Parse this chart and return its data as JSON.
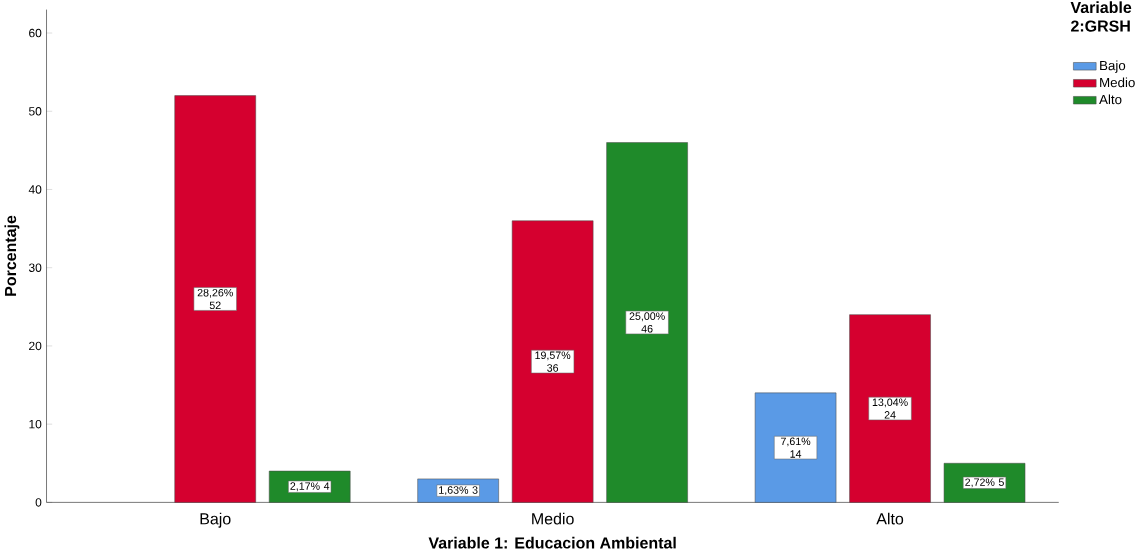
{
  "chart_data": {
    "type": "bar",
    "xlabel": "Variable 1: Educacion Ambiental",
    "ylabel": "Porcentaje",
    "legend_title": "Variable 2:GRSH",
    "legend": "top right",
    "categories": [
      "Bajo",
      "Medio",
      "Alto"
    ],
    "ylim": [
      0,
      63
    ],
    "yticks": [
      0,
      10,
      20,
      30,
      40,
      50,
      60
    ],
    "grid": false,
    "series": [
      {
        "name": "Bajo",
        "color": "#5a9ae6",
        "values": [
          null,
          3,
          14
        ],
        "value_labels": [
          null,
          "1,63% 3",
          "7,61% 14"
        ]
      },
      {
        "name": "Medio",
        "color": "#d5002f",
        "values": [
          52,
          36,
          24
        ],
        "value_labels": [
          "28,26% 52",
          "19,57% 36",
          "13,04% 24"
        ]
      },
      {
        "name": "Alto",
        "color": "#1f8a2a",
        "values": [
          4,
          46,
          5
        ],
        "value_labels": [
          "2,17% 4",
          "25,00% 46",
          "2,72% 5"
        ]
      }
    ]
  }
}
